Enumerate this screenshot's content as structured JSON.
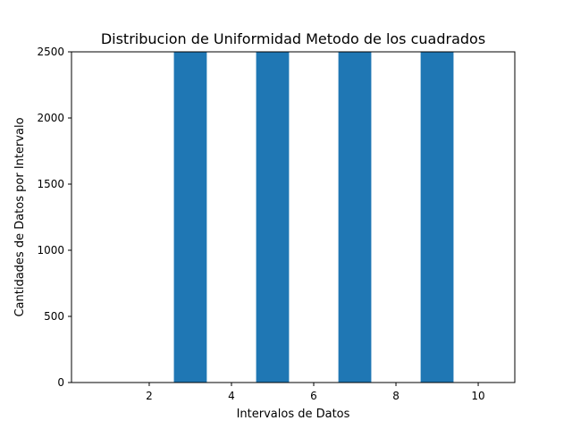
{
  "chart_data": {
    "type": "bar",
    "title": "Distribucion de Uniformidad Metodo de los cuadrados",
    "xlabel": "Intervalos de Datos",
    "ylabel": "Cantidades de Datos por Intervalo",
    "x": [
      1,
      2,
      3,
      4,
      5,
      6,
      7,
      8,
      9,
      10
    ],
    "values": [
      0,
      0,
      2500,
      0,
      2500,
      0,
      2500,
      0,
      2500,
      0
    ],
    "bar_width": 0.8,
    "xlim": [
      0.11,
      10.89
    ],
    "ylim": [
      0,
      2500
    ],
    "xticks": [
      2,
      4,
      6,
      8,
      10
    ],
    "yticks": [
      0,
      500,
      1000,
      1500,
      2000,
      2500
    ],
    "grid": false,
    "legend": "none",
    "bar_color": "#1f77b4"
  }
}
